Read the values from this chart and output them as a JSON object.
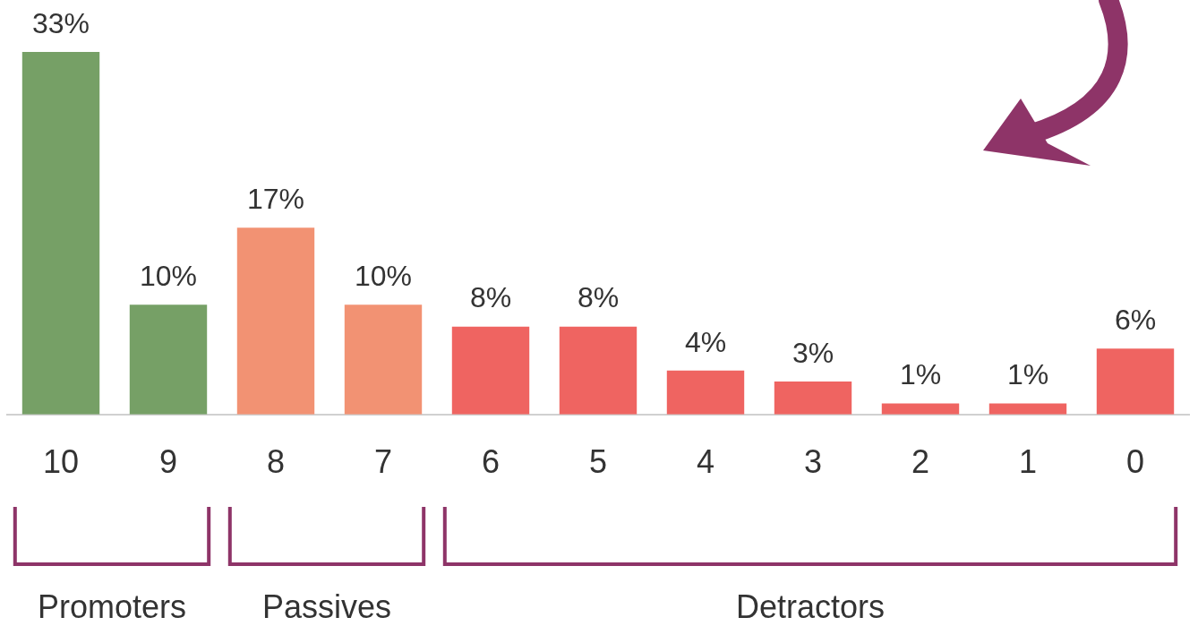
{
  "chart_data": {
    "type": "bar",
    "categories": [
      "10",
      "9",
      "8",
      "7",
      "6",
      "5",
      "4",
      "3",
      "2",
      "1",
      "0"
    ],
    "values": [
      33,
      10,
      17,
      10,
      8,
      8,
      4,
      3,
      1,
      1,
      6
    ],
    "value_labels": [
      "33%",
      "10%",
      "17%",
      "10%",
      "8%",
      "8%",
      "4%",
      "3%",
      "1%",
      "1%",
      "6%"
    ],
    "colors": [
      "#76a066",
      "#76a066",
      "#f29273",
      "#f29273",
      "#ef6461",
      "#ef6461",
      "#ef6461",
      "#ef6461",
      "#ef6461",
      "#ef6461",
      "#ef6461"
    ],
    "annotations": [
      "Promoters",
      "Passives",
      "Detractors"
    ],
    "grid": false,
    "legend": false
  }
}
